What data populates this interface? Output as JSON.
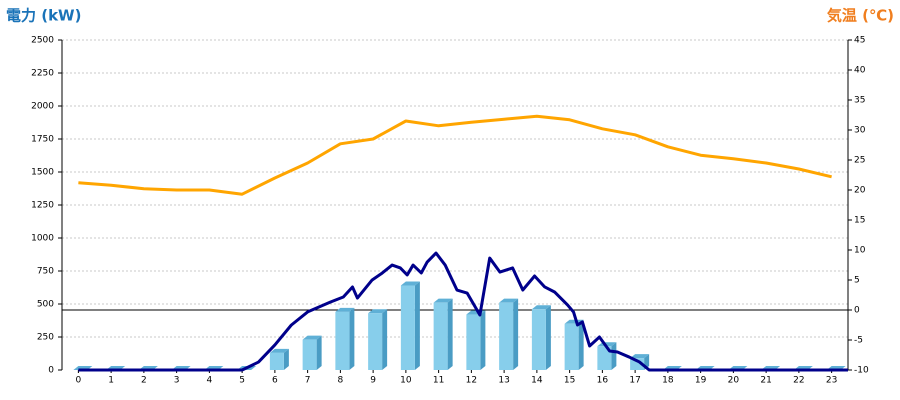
{
  "chart_data": {
    "type": "combo",
    "y_label": "電力 (kW)",
    "y2_label": "気温 (℃)",
    "y_label_color": "#1a73b8",
    "y2_label_color": "#f07e1e",
    "categories": [
      "0",
      "1",
      "2",
      "3",
      "4",
      "5",
      "6",
      "7",
      "8",
      "9",
      "10",
      "11",
      "12",
      "13",
      "14",
      "15",
      "16",
      "17",
      "18",
      "19",
      "20",
      "21",
      "22",
      "23"
    ],
    "ylim": [
      0,
      2500
    ],
    "yticks": [
      0,
      250,
      500,
      750,
      1000,
      1250,
      1500,
      1750,
      2000,
      2250,
      2500
    ],
    "y2lim": [
      -10,
      45
    ],
    "y2ticks": [
      -10,
      -5,
      0,
      5,
      10,
      15,
      20,
      25,
      30,
      35,
      40,
      45
    ],
    "grid": true,
    "series": [
      {
        "type": "bar",
        "color": "#87ceeb",
        "values": [
          0,
          0,
          0,
          0,
          0,
          0,
          130,
          230,
          440,
          430,
          640,
          510,
          420,
          510,
          460,
          350,
          180,
          90,
          0,
          0,
          0,
          0,
          0,
          0
        ]
      },
      {
        "type": "line",
        "color": "#00008b",
        "x": [
          0,
          5,
          5.5,
          6,
          6.5,
          7,
          7.7,
          8.09,
          8.37,
          8.52,
          8.97,
          9.28,
          9.58,
          9.83,
          10.04,
          10.22,
          10.47,
          10.65,
          10.92,
          11.2,
          11.56,
          11.87,
          12.26,
          12.56,
          12.87,
          13.26,
          13.57,
          13.93,
          14.24,
          14.54,
          14.94,
          15.12,
          15.24,
          15.39,
          15.61,
          15.91,
          16.22,
          16.46,
          16.82,
          17.13,
          17.43,
          23.5
        ],
        "values": [
          0,
          0,
          60,
          190,
          340,
          440,
          515,
          553,
          629,
          545,
          682,
          735,
          795,
          773,
          720,
          795,
          735,
          818,
          886,
          795,
          606,
          583,
          417,
          848,
          742,
          773,
          606,
          712,
          629,
          591,
          492,
          439,
          341,
          364,
          182,
          250,
          144,
          136,
          98,
          61,
          0,
          0
        ]
      },
      {
        "type": "line",
        "axis": "y2",
        "color": "#ffa500",
        "values": [
          21.2,
          20.8,
          20.2,
          20,
          20,
          19.3,
          22,
          24.5,
          27.7,
          28.5,
          31.5,
          30.7,
          31.3,
          31.8,
          32.3,
          31.7,
          30.2,
          29.2,
          27.2,
          25.8,
          25.2,
          24.5,
          23.5,
          22.2
        ]
      }
    ]
  }
}
